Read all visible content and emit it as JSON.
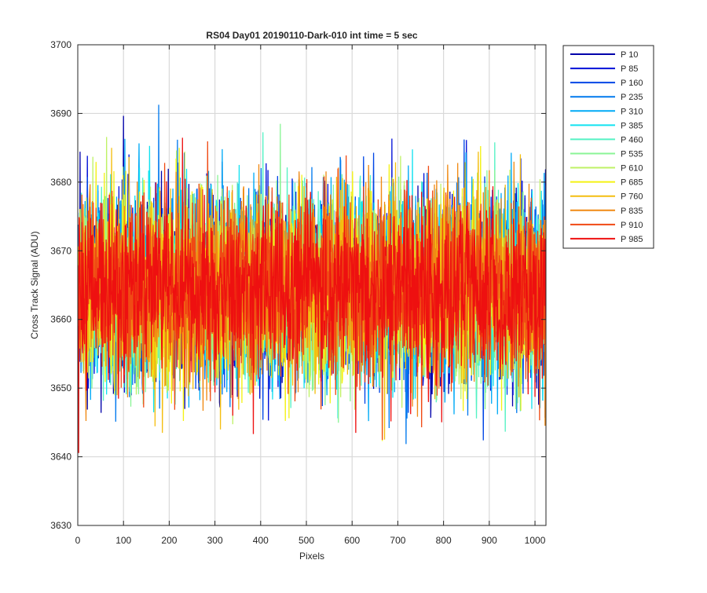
{
  "chart_data": {
    "type": "line",
    "title": "RS04 Day01 20190110-Dark-010 int time = 5 sec",
    "xlabel": "Pixels",
    "ylabel": "Cross Track Signal (ADU)",
    "xlim": [
      0,
      1024
    ],
    "ylim": [
      3630,
      3700
    ],
    "xticks": [
      0,
      100,
      200,
      300,
      400,
      500,
      600,
      700,
      800,
      900,
      1000
    ],
    "yticks": [
      3630,
      3640,
      3650,
      3660,
      3670,
      3680,
      3690,
      3700
    ],
    "grid": true,
    "legend_position": "outside-top-right",
    "noise_model": {
      "mean": 3664.5,
      "sigma": 6.6,
      "min": 3634,
      "max": 3694,
      "points_per_series": 1024
    },
    "series": [
      {
        "name": "P 10",
        "color": "#0000aa"
      },
      {
        "name": "P 85",
        "color": "#0010d8"
      },
      {
        "name": "P 160",
        "color": "#0046e6"
      },
      {
        "name": "P 235",
        "color": "#0079ee"
      },
      {
        "name": "P 310",
        "color": "#00aaf6"
      },
      {
        "name": "P 385",
        "color": "#12e2f0"
      },
      {
        "name": "P 460",
        "color": "#55f2c4"
      },
      {
        "name": "P 535",
        "color": "#8af496"
      },
      {
        "name": "P 610",
        "color": "#bff266"
      },
      {
        "name": "P 685",
        "color": "#f4f214"
      },
      {
        "name": "P 760",
        "color": "#f4be10"
      },
      {
        "name": "P 835",
        "color": "#f08a14"
      },
      {
        "name": "P 910",
        "color": "#f04a14"
      },
      {
        "name": "P 985",
        "color": "#ee1010"
      }
    ]
  }
}
